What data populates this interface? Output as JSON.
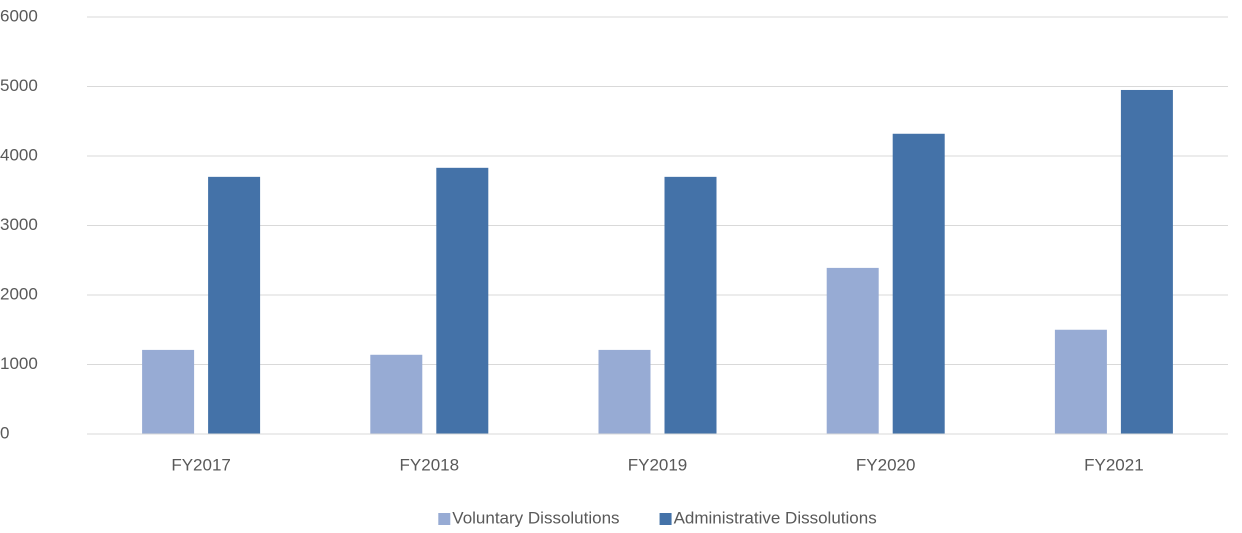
{
  "chart_data": {
    "type": "bar",
    "categories": [
      "FY2017",
      "FY2018",
      "FY2019",
      "FY2020",
      "FY2021"
    ],
    "series": [
      {
        "name": "Voluntary Dissolutions",
        "color": "#97abd4",
        "values": [
          1210,
          1140,
          1210,
          2390,
          1500
        ]
      },
      {
        "name": "Administrative Dissolutions",
        "color": "#4472a8",
        "values": [
          3700,
          3830,
          3700,
          4320,
          4950
        ]
      }
    ],
    "ylim": [
      0,
      6000
    ],
    "yticks": [
      0,
      1000,
      2000,
      3000,
      4000,
      5000,
      6000
    ],
    "grid": true,
    "legend": "bottom"
  }
}
